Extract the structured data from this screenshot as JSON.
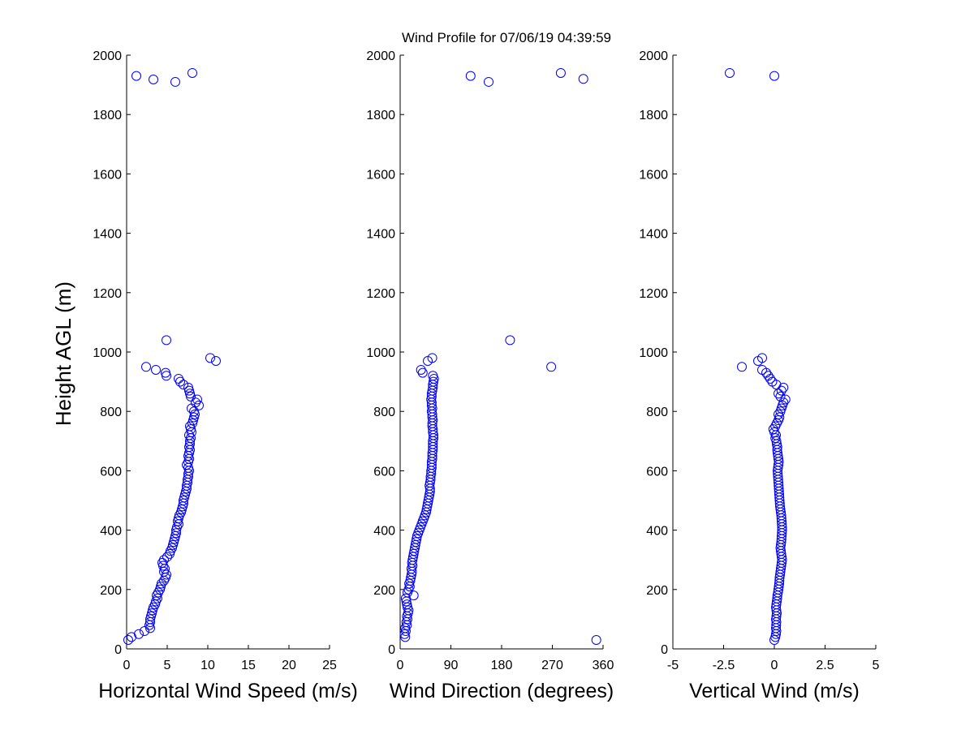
{
  "figure": {
    "title": "Wind Profile for  07/06/19 04:39:59",
    "ylabel": "Height AGL (m)"
  },
  "chart_data": [
    {
      "type": "scatter",
      "xlabel": "Horizontal Wind Speed (m/s)",
      "ylabel": "Height AGL (m)",
      "xlim": [
        0,
        25
      ],
      "ylim": [
        0,
        2000
      ],
      "xticks": [
        "0",
        "5",
        "10",
        "15",
        "20",
        "25"
      ],
      "xtick_values": [
        0,
        5,
        10,
        15,
        20,
        25
      ],
      "yticks": [
        "0",
        "200",
        "400",
        "600",
        "800",
        "1000",
        "1200",
        "1400",
        "1600",
        "1800",
        "2000"
      ],
      "ytick_values": [
        0,
        200,
        400,
        600,
        800,
        1000,
        1200,
        1400,
        1600,
        1800,
        2000
      ],
      "marker_color": "#0000ff",
      "points": [
        [
          0.2,
          30
        ],
        [
          0.6,
          40
        ],
        [
          1.5,
          50
        ],
        [
          2.2,
          60
        ],
        [
          2.9,
          70
        ],
        [
          2.8,
          80
        ],
        [
          2.9,
          90
        ],
        [
          2.9,
          100
        ],
        [
          3.0,
          110
        ],
        [
          3.1,
          120
        ],
        [
          3.2,
          130
        ],
        [
          3.3,
          140
        ],
        [
          3.5,
          150
        ],
        [
          3.6,
          160
        ],
        [
          3.8,
          170
        ],
        [
          3.7,
          180
        ],
        [
          3.9,
          190
        ],
        [
          4.1,
          200
        ],
        [
          4.2,
          210
        ],
        [
          4.3,
          220
        ],
        [
          4.6,
          230
        ],
        [
          4.8,
          240
        ],
        [
          4.9,
          250
        ],
        [
          4.6,
          260
        ],
        [
          4.7,
          270
        ],
        [
          4.5,
          280
        ],
        [
          4.4,
          290
        ],
        [
          4.6,
          300
        ],
        [
          5.0,
          310
        ],
        [
          5.3,
          320
        ],
        [
          5.4,
          330
        ],
        [
          5.6,
          340
        ],
        [
          5.7,
          350
        ],
        [
          5.8,
          360
        ],
        [
          5.9,
          370
        ],
        [
          6.0,
          380
        ],
        [
          6.1,
          390
        ],
        [
          6.1,
          400
        ],
        [
          6.2,
          410
        ],
        [
          6.4,
          420
        ],
        [
          6.3,
          430
        ],
        [
          6.4,
          440
        ],
        [
          6.5,
          450
        ],
        [
          6.7,
          460
        ],
        [
          6.8,
          470
        ],
        [
          6.9,
          480
        ],
        [
          7.0,
          490
        ],
        [
          7.0,
          500
        ],
        [
          7.1,
          510
        ],
        [
          7.2,
          520
        ],
        [
          7.3,
          530
        ],
        [
          7.4,
          540
        ],
        [
          7.4,
          550
        ],
        [
          7.5,
          560
        ],
        [
          7.5,
          570
        ],
        [
          7.6,
          580
        ],
        [
          7.6,
          590
        ],
        [
          7.7,
          600
        ],
        [
          7.6,
          610
        ],
        [
          7.4,
          620
        ],
        [
          7.6,
          630
        ],
        [
          7.7,
          640
        ],
        [
          7.6,
          650
        ],
        [
          7.7,
          660
        ],
        [
          7.8,
          670
        ],
        [
          7.7,
          680
        ],
        [
          7.8,
          690
        ],
        [
          7.8,
          700
        ],
        [
          7.9,
          710
        ],
        [
          7.7,
          720
        ],
        [
          8.0,
          730
        ],
        [
          7.9,
          740
        ],
        [
          7.8,
          750
        ],
        [
          8.1,
          760
        ],
        [
          8.2,
          770
        ],
        [
          8.3,
          780
        ],
        [
          8.4,
          790
        ],
        [
          8.3,
          800
        ],
        [
          8.0,
          810
        ],
        [
          8.9,
          820
        ],
        [
          8.5,
          830
        ],
        [
          8.7,
          840
        ],
        [
          7.9,
          850
        ],
        [
          7.8,
          860
        ],
        [
          7.7,
          870
        ],
        [
          7.6,
          880
        ],
        [
          7.0,
          890
        ],
        [
          6.6,
          900
        ],
        [
          6.4,
          910
        ],
        [
          4.9,
          920
        ],
        [
          4.8,
          930
        ],
        [
          3.6,
          940
        ],
        [
          2.4,
          950
        ],
        [
          11.0,
          970
        ],
        [
          10.3,
          980
        ],
        [
          4.9,
          1040
        ],
        [
          1.2,
          1930
        ],
        [
          3.3,
          1918
        ],
        [
          6.0,
          1910
        ],
        [
          8.1,
          1940
        ]
      ]
    },
    {
      "type": "scatter",
      "xlabel": "Wind Direction (degrees)",
      "ylabel": "",
      "xlim": [
        0,
        360
      ],
      "ylim": [
        0,
        2000
      ],
      "xticks": [
        "0",
        "90",
        "180",
        "270",
        "360"
      ],
      "xtick_values": [
        0,
        90,
        180,
        270,
        360
      ],
      "yticks": [
        "0",
        "200",
        "400",
        "600",
        "800",
        "1000",
        "1200",
        "1400",
        "1600",
        "1800",
        "2000"
      ],
      "ytick_values": [
        0,
        200,
        400,
        600,
        800,
        1000,
        1200,
        1400,
        1600,
        1800,
        2000
      ],
      "marker_color": "#0000ff",
      "points": [
        [
          348,
          30
        ],
        [
          9,
          40
        ],
        [
          8,
          50
        ],
        [
          10,
          60
        ],
        [
          9,
          70
        ],
        [
          12,
          80
        ],
        [
          11,
          90
        ],
        [
          13,
          100
        ],
        [
          12,
          110
        ],
        [
          14,
          120
        ],
        [
          15,
          130
        ],
        [
          13,
          140
        ],
        [
          12,
          150
        ],
        [
          11,
          160
        ],
        [
          10,
          170
        ],
        [
          24,
          180
        ],
        [
          13,
          190
        ],
        [
          15,
          200
        ],
        [
          17,
          210
        ],
        [
          16,
          220
        ],
        [
          18,
          230
        ],
        [
          19,
          240
        ],
        [
          20,
          250
        ],
        [
          21,
          260
        ],
        [
          20,
          270
        ],
        [
          22,
          280
        ],
        [
          21,
          290
        ],
        [
          22,
          300
        ],
        [
          23,
          310
        ],
        [
          24,
          320
        ],
        [
          25,
          330
        ],
        [
          26,
          340
        ],
        [
          27,
          350
        ],
        [
          28,
          360
        ],
        [
          29,
          370
        ],
        [
          30,
          380
        ],
        [
          32,
          390
        ],
        [
          34,
          400
        ],
        [
          36,
          410
        ],
        [
          38,
          420
        ],
        [
          40,
          430
        ],
        [
          42,
          440
        ],
        [
          44,
          450
        ],
        [
          46,
          460
        ],
        [
          47,
          470
        ],
        [
          48,
          480
        ],
        [
          49,
          490
        ],
        [
          50,
          500
        ],
        [
          51,
          510
        ],
        [
          52,
          520
        ],
        [
          53,
          530
        ],
        [
          53,
          540
        ],
        [
          52,
          550
        ],
        [
          53,
          560
        ],
        [
          54,
          570
        ],
        [
          54,
          580
        ],
        [
          55,
          590
        ],
        [
          55,
          600
        ],
        [
          56,
          610
        ],
        [
          56,
          620
        ],
        [
          56,
          630
        ],
        [
          57,
          640
        ],
        [
          57,
          650
        ],
        [
          57,
          660
        ],
        [
          58,
          670
        ],
        [
          58,
          680
        ],
        [
          58,
          690
        ],
        [
          58,
          700
        ],
        [
          59,
          710
        ],
        [
          59,
          720
        ],
        [
          58,
          730
        ],
        [
          58,
          740
        ],
        [
          57,
          750
        ],
        [
          57,
          760
        ],
        [
          58,
          770
        ],
        [
          57,
          780
        ],
        [
          57,
          790
        ],
        [
          56,
          800
        ],
        [
          57,
          810
        ],
        [
          56,
          820
        ],
        [
          56,
          830
        ],
        [
          55,
          840
        ],
        [
          56,
          850
        ],
        [
          56,
          860
        ],
        [
          57,
          870
        ],
        [
          58,
          880
        ],
        [
          58,
          890
        ],
        [
          59,
          900
        ],
        [
          60,
          910
        ],
        [
          58,
          920
        ],
        [
          40,
          930
        ],
        [
          37,
          940
        ],
        [
          49,
          970
        ],
        [
          57,
          980
        ],
        [
          268,
          950
        ],
        [
          195,
          1040
        ],
        [
          125,
          1930
        ],
        [
          157,
          1910
        ],
        [
          285,
          1940
        ],
        [
          325,
          1920
        ]
      ]
    },
    {
      "type": "scatter",
      "xlabel": "Vertical Wind (m/s)",
      "ylabel": "",
      "xlim": [
        -5,
        5
      ],
      "ylim": [
        0,
        2000
      ],
      "xticks": [
        "-5",
        "-2.5",
        "0",
        "2.5",
        "5"
      ],
      "xtick_values": [
        -5,
        -2.5,
        0,
        2.5,
        5
      ],
      "yticks": [
        "0",
        "200",
        "400",
        "600",
        "800",
        "1000",
        "1200",
        "1400",
        "1600",
        "1800",
        "2000"
      ],
      "ytick_values": [
        0,
        200,
        400,
        600,
        800,
        1000,
        1200,
        1400,
        1600,
        1800,
        2000
      ],
      "marker_color": "#0000ff",
      "points": [
        [
          0.0,
          30
        ],
        [
          0.05,
          40
        ],
        [
          0.08,
          50
        ],
        [
          0.1,
          60
        ],
        [
          0.08,
          70
        ],
        [
          0.09,
          80
        ],
        [
          0.1,
          90
        ],
        [
          0.08,
          100
        ],
        [
          0.1,
          110
        ],
        [
          0.12,
          120
        ],
        [
          0.1,
          130
        ],
        [
          0.08,
          140
        ],
        [
          0.1,
          150
        ],
        [
          0.12,
          160
        ],
        [
          0.14,
          170
        ],
        [
          0.15,
          180
        ],
        [
          0.18,
          190
        ],
        [
          0.2,
          200
        ],
        [
          0.22,
          210
        ],
        [
          0.24,
          220
        ],
        [
          0.25,
          230
        ],
        [
          0.26,
          240
        ],
        [
          0.28,
          250
        ],
        [
          0.3,
          260
        ],
        [
          0.32,
          270
        ],
        [
          0.34,
          280
        ],
        [
          0.36,
          290
        ],
        [
          0.38,
          300
        ],
        [
          0.36,
          310
        ],
        [
          0.34,
          320
        ],
        [
          0.32,
          330
        ],
        [
          0.3,
          340
        ],
        [
          0.32,
          350
        ],
        [
          0.34,
          360
        ],
        [
          0.35,
          370
        ],
        [
          0.36,
          380
        ],
        [
          0.37,
          390
        ],
        [
          0.38,
          400
        ],
        [
          0.38,
          410
        ],
        [
          0.37,
          420
        ],
        [
          0.36,
          430
        ],
        [
          0.35,
          440
        ],
        [
          0.34,
          450
        ],
        [
          0.32,
          460
        ],
        [
          0.3,
          470
        ],
        [
          0.28,
          480
        ],
        [
          0.27,
          490
        ],
        [
          0.26,
          500
        ],
        [
          0.25,
          510
        ],
        [
          0.24,
          520
        ],
        [
          0.23,
          530
        ],
        [
          0.22,
          540
        ],
        [
          0.21,
          550
        ],
        [
          0.2,
          560
        ],
        [
          0.19,
          570
        ],
        [
          0.18,
          580
        ],
        [
          0.17,
          590
        ],
        [
          0.16,
          600
        ],
        [
          0.18,
          610
        ],
        [
          0.2,
          620
        ],
        [
          0.22,
          630
        ],
        [
          0.2,
          640
        ],
        [
          0.18,
          650
        ],
        [
          0.16,
          660
        ],
        [
          0.14,
          670
        ],
        [
          0.15,
          680
        ],
        [
          0.12,
          690
        ],
        [
          0.1,
          700
        ],
        [
          0.05,
          710
        ],
        [
          0.08,
          720
        ],
        [
          0.0,
          730
        ],
        [
          -0.05,
          740
        ],
        [
          0.05,
          750
        ],
        [
          0.12,
          760
        ],
        [
          0.2,
          770
        ],
        [
          0.25,
          780
        ],
        [
          0.2,
          790
        ],
        [
          0.3,
          800
        ],
        [
          0.35,
          810
        ],
        [
          0.4,
          820
        ],
        [
          0.45,
          830
        ],
        [
          0.55,
          840
        ],
        [
          0.3,
          850
        ],
        [
          0.2,
          860
        ],
        [
          0.35,
          870
        ],
        [
          0.45,
          880
        ],
        [
          0.1,
          890
        ],
        [
          -0.1,
          900
        ],
        [
          -0.2,
          910
        ],
        [
          -0.3,
          920
        ],
        [
          -0.4,
          930
        ],
        [
          -0.6,
          940
        ],
        [
          -1.6,
          950
        ],
        [
          -0.8,
          970
        ],
        [
          -0.6,
          980
        ],
        [
          -2.2,
          1940
        ],
        [
          0.0,
          1930
        ]
      ]
    }
  ]
}
